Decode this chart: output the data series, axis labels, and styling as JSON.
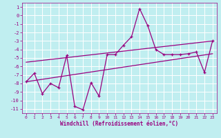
{
  "xlabel": "Windchill (Refroidissement éolien,°C)",
  "background_color": "#c0eef0",
  "grid_color": "#ffffff",
  "line_color": "#990080",
  "x_data": [
    0,
    1,
    2,
    3,
    4,
    5,
    6,
    7,
    8,
    9,
    10,
    11,
    12,
    13,
    14,
    15,
    16,
    17,
    18,
    19,
    20,
    21,
    22,
    23
  ],
  "y_data": [
    -7.8,
    -6.8,
    -9.2,
    -8.0,
    -8.5,
    -4.7,
    -10.7,
    -11.1,
    -7.9,
    -9.5,
    -4.6,
    -4.6,
    -3.5,
    -2.5,
    0.8,
    -1.2,
    -4.0,
    -4.6,
    -4.6,
    -4.6,
    -4.5,
    -4.3,
    -6.7,
    -3.0
  ],
  "trend1_x": [
    0,
    23
  ],
  "trend1_y": [
    -5.5,
    -3.0
  ],
  "trend2_x": [
    0,
    23
  ],
  "trend2_y": [
    -7.8,
    -4.5
  ],
  "xlim": [
    -0.5,
    23.5
  ],
  "ylim": [
    -11.5,
    1.5
  ],
  "yticks": [
    1,
    0,
    -1,
    -2,
    -3,
    -4,
    -5,
    -6,
    -7,
    -8,
    -9,
    -10,
    -11
  ],
  "xticks": [
    0,
    1,
    2,
    3,
    4,
    5,
    6,
    7,
    8,
    9,
    10,
    11,
    12,
    13,
    14,
    15,
    16,
    17,
    18,
    19,
    20,
    21,
    22,
    23
  ]
}
